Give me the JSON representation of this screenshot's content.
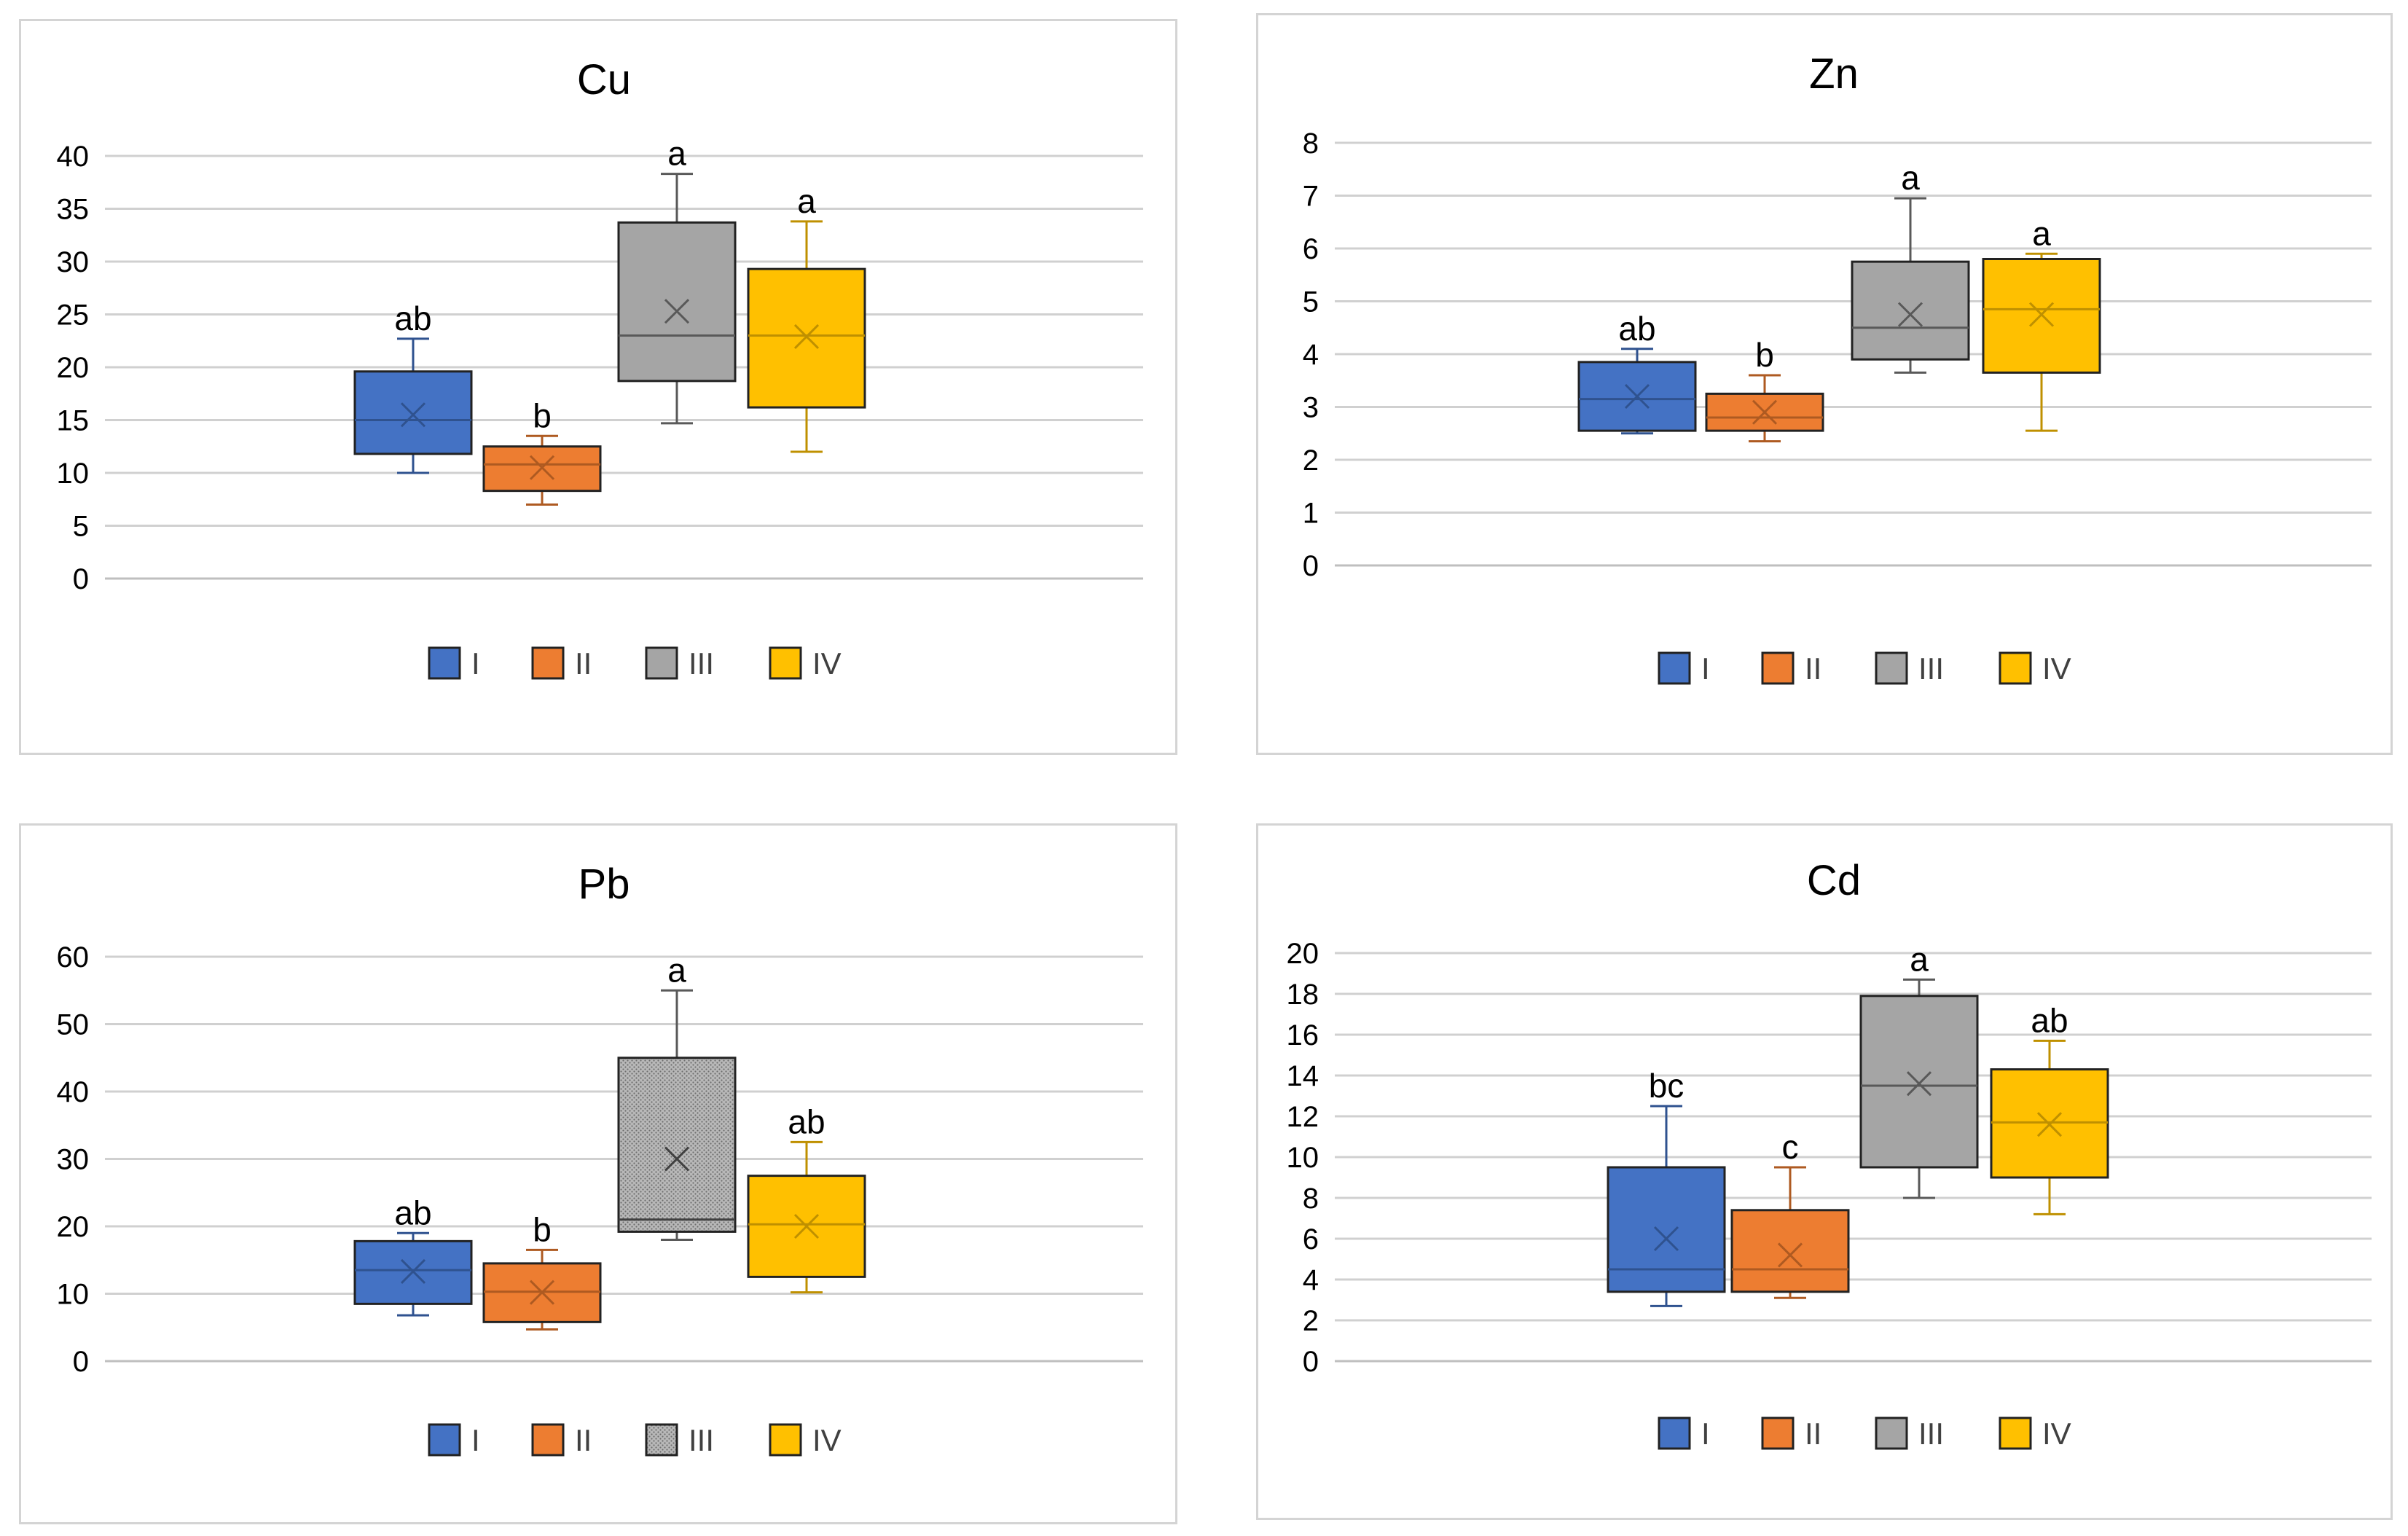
{
  "chart_data": [
    {
      "type": "box",
      "title": "Cu",
      "ylim": [
        0,
        40
      ],
      "yticks": [
        0,
        5,
        10,
        15,
        20,
        25,
        30,
        35,
        40
      ],
      "legend_position": "bottom",
      "series": [
        {
          "name": "I",
          "color": "#4472C4",
          "stroke": "#2F528F",
          "min": 10,
          "q1": 11.8,
          "median": 15,
          "q3": 19.6,
          "max": 22.7,
          "mean": 15.5,
          "label": "ab"
        },
        {
          "name": "II",
          "color": "#ED7D31",
          "stroke": "#AE5A21",
          "min": 7,
          "q1": 8.3,
          "median": 10.8,
          "q3": 12.5,
          "max": 13.5,
          "mean": 10.5,
          "label": "b"
        },
        {
          "name": "III",
          "color": "#A5A5A5",
          "stroke": "#595959",
          "min": 14.7,
          "q1": 18.7,
          "median": 23,
          "q3": 33.7,
          "max": 38.3,
          "mean": 25.3,
          "label": "a"
        },
        {
          "name": "IV",
          "color": "#FFC000",
          "stroke": "#BF9000",
          "min": 12,
          "q1": 16.2,
          "median": 23,
          "q3": 29.3,
          "max": 33.8,
          "mean": 22.9,
          "label": "a"
        }
      ]
    },
    {
      "type": "box",
      "title": "Zn",
      "ylim": [
        0,
        8
      ],
      "yticks": [
        0,
        1,
        2,
        3,
        4,
        5,
        6,
        7,
        8
      ],
      "legend_position": "bottom",
      "series": [
        {
          "name": "I",
          "color": "#4472C4",
          "stroke": "#2F528F",
          "min": 2.5,
          "q1": 2.55,
          "median": 3.15,
          "q3": 3.85,
          "max": 4.1,
          "mean": 3.2,
          "label": "ab"
        },
        {
          "name": "II",
          "color": "#ED7D31",
          "stroke": "#AE5A21",
          "min": 2.35,
          "q1": 2.55,
          "median": 2.8,
          "q3": 3.25,
          "max": 3.6,
          "mean": 2.9,
          "label": "b"
        },
        {
          "name": "III",
          "color": "#A5A5A5",
          "stroke": "#595959",
          "min": 3.65,
          "q1": 3.9,
          "median": 4.5,
          "q3": 5.75,
          "max": 6.95,
          "mean": 4.75,
          "label": "a"
        },
        {
          "name": "IV",
          "color": "#FFC000",
          "stroke": "#BF9000",
          "min": 2.55,
          "q1": 3.65,
          "median": 4.85,
          "q3": 5.8,
          "max": 5.9,
          "mean": 4.75,
          "label": "a"
        }
      ]
    },
    {
      "type": "box",
      "title": "Pb",
      "ylim": [
        0,
        60
      ],
      "yticks": [
        0,
        10,
        20,
        30,
        40,
        50,
        60
      ],
      "legend_position": "bottom",
      "series": [
        {
          "name": "I",
          "color": "#4472C4",
          "stroke": "#2F528F",
          "min": 6.8,
          "q1": 8.5,
          "median": 13.5,
          "q3": 17.8,
          "max": 19,
          "mean": 13.3,
          "label": "ab"
        },
        {
          "name": "II",
          "color": "#ED7D31",
          "stroke": "#AE5A21",
          "min": 4.7,
          "q1": 5.8,
          "median": 10.3,
          "q3": 14.5,
          "max": 16.5,
          "mean": 10.2,
          "label": "b"
        },
        {
          "name": "III",
          "color": "#A5A5A5",
          "stroke": "#595959",
          "min": 18,
          "q1": 19.2,
          "median": 21,
          "q3": 45,
          "max": 55,
          "mean": 30,
          "label": "a",
          "pattern": true
        },
        {
          "name": "IV",
          "color": "#FFC000",
          "stroke": "#BF9000",
          "min": 10.2,
          "q1": 12.5,
          "median": 20.3,
          "q3": 27.5,
          "max": 32.5,
          "mean": 20,
          "label": "ab"
        }
      ]
    },
    {
      "type": "box",
      "title": "Cd",
      "ylim": [
        0,
        20
      ],
      "yticks": [
        0,
        2,
        4,
        6,
        8,
        10,
        12,
        14,
        16,
        18,
        20
      ],
      "legend_position": "bottom",
      "series": [
        {
          "name": "I",
          "color": "#4472C4",
          "stroke": "#2F528F",
          "min": 2.7,
          "q1": 3.4,
          "median": 4.5,
          "q3": 9.5,
          "max": 12.5,
          "mean": 6,
          "label": "bc"
        },
        {
          "name": "II",
          "color": "#ED7D31",
          "stroke": "#AE5A21",
          "min": 3.1,
          "q1": 3.4,
          "median": 4.5,
          "q3": 7.4,
          "max": 9.5,
          "mean": 5.2,
          "label": "c"
        },
        {
          "name": "III",
          "color": "#A5A5A5",
          "stroke": "#595959",
          "min": 8,
          "q1": 9.5,
          "median": 13.5,
          "q3": 17.9,
          "max": 18.7,
          "mean": 13.6,
          "label": "a"
        },
        {
          "name": "IV",
          "color": "#FFC000",
          "stroke": "#BF9000",
          "min": 7.2,
          "q1": 9,
          "median": 11.7,
          "q3": 14.3,
          "max": 15.7,
          "mean": 11.6,
          "label": "ab"
        }
      ]
    }
  ]
}
